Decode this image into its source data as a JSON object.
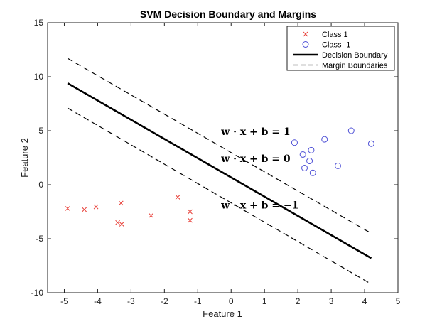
{
  "chart_data": {
    "type": "scatter",
    "title": "SVM Decision Boundary and Margins",
    "xlabel": "Feature 1",
    "ylabel": "Feature 2",
    "xlim": [
      -5.5,
      5
    ],
    "ylim": [
      -10,
      15
    ],
    "xticks": [
      -5,
      -4,
      -3,
      -2,
      -1,
      0,
      1,
      2,
      3,
      4,
      5
    ],
    "yticks": [
      -10,
      -5,
      0,
      5,
      10,
      15
    ],
    "grid": false,
    "legend_position": "top-right",
    "series": [
      {
        "name": "Class 1",
        "kind": "points",
        "marker": "x",
        "color": "#e8413a",
        "points": [
          [
            -4.9,
            -2.2
          ],
          [
            -4.4,
            -2.3
          ],
          [
            -4.05,
            -2.05
          ],
          [
            -3.4,
            -3.5
          ],
          [
            -3.3,
            -1.7
          ],
          [
            -3.28,
            -3.65
          ],
          [
            -2.4,
            -2.85
          ],
          [
            -1.6,
            -1.15
          ],
          [
            -1.23,
            -2.5
          ],
          [
            -1.23,
            -3.3
          ]
        ]
      },
      {
        "name": "Class -1",
        "kind": "points",
        "marker": "o",
        "color": "#4d4fd6",
        "points": [
          [
            1.9,
            3.9
          ],
          [
            2.15,
            2.8
          ],
          [
            2.2,
            1.55
          ],
          [
            2.35,
            2.2
          ],
          [
            2.4,
            3.2
          ],
          [
            2.45,
            1.1
          ],
          [
            2.8,
            4.2
          ],
          [
            3.2,
            1.75
          ],
          [
            3.6,
            5.0
          ],
          [
            4.2,
            3.8
          ]
        ]
      },
      {
        "name": "Decision Boundary",
        "kind": "line",
        "style": "solid",
        "color": "#000000",
        "x": [
          -4.9,
          4.2
        ],
        "y": [
          9.4,
          -6.8
        ]
      },
      {
        "name": "Margin Boundaries",
        "kind": "line",
        "style": "dashed",
        "color": "#000000",
        "x": [
          -4.9,
          4.2
        ],
        "y": [
          11.7,
          -4.5
        ]
      },
      {
        "name": "",
        "kind": "line",
        "style": "dashed",
        "color": "#000000",
        "x": [
          -4.9,
          4.2
        ],
        "y": [
          7.1,
          -9.2
        ]
      }
    ],
    "annotations": [
      {
        "text": "w · x + b = 1",
        "x": -0.3,
        "y": 4.6
      },
      {
        "text": "w · x + b = 0",
        "x": -0.3,
        "y": 2.1
      },
      {
        "text": "w · x + b = −1",
        "x": -0.3,
        "y": -2.2
      }
    ]
  }
}
